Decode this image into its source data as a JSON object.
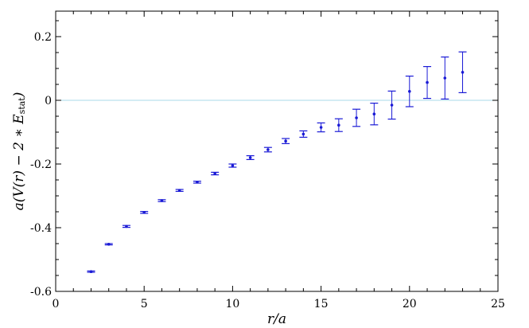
{
  "chart_data": {
    "type": "scatter",
    "title": "",
    "xlabel": "r/a",
    "ylabel": "a(V(r) − 2 ∗ E",
    "ylabel_sub": "stat",
    "ylabel_close": ")",
    "xlim": [
      0,
      25
    ],
    "ylim": [
      -0.6,
      0.28
    ],
    "xticks": [
      0,
      5,
      10,
      15,
      20,
      25
    ],
    "xtick_labels": [
      "0",
      "5",
      "10",
      "15",
      "20",
      "25"
    ],
    "yticks": [
      -0.6,
      -0.4,
      -0.2,
      0,
      0.2
    ],
    "ytick_labels": [
      "-0.6",
      "-0.4",
      "-0.2",
      "0",
      "0.2"
    ],
    "grid": false,
    "reference_line_y": 0,
    "colors": {
      "points": "#1a1ad6",
      "reference": "#a8d8ea",
      "axes": "#000000"
    },
    "series": [
      {
        "x": [
          2,
          3,
          4,
          5,
          6,
          7,
          8,
          9,
          10,
          11,
          12,
          13,
          14,
          15,
          16,
          17,
          18,
          19,
          20,
          21,
          22,
          23
        ],
        "y": [
          -0.538,
          -0.452,
          -0.396,
          -0.352,
          -0.315,
          -0.283,
          -0.257,
          -0.23,
          -0.205,
          -0.18,
          -0.155,
          -0.128,
          -0.106,
          -0.085,
          -0.078,
          -0.055,
          -0.043,
          -0.015,
          0.028,
          0.056,
          0.07,
          0.088
        ],
        "err": [
          0.002,
          0.002,
          0.003,
          0.003,
          0.003,
          0.003,
          0.003,
          0.004,
          0.005,
          0.006,
          0.007,
          0.008,
          0.01,
          0.014,
          0.02,
          0.027,
          0.034,
          0.044,
          0.048,
          0.05,
          0.066,
          0.064
        ]
      }
    ]
  }
}
